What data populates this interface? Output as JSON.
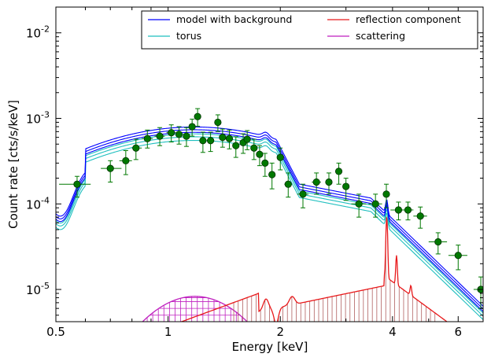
{
  "chart_data": {
    "type": "line",
    "title": "",
    "xlabel": "Energy [keV]",
    "ylabel": "Count rate [cts/s/keV]",
    "xscale": "log",
    "yscale": "log",
    "xlim": [
      0.5,
      7.0
    ],
    "ylim": [
      4.2e-06,
      0.02
    ],
    "grid": false,
    "legend_position": "top-right",
    "legend_columns": 2,
    "x_ticks": [
      {
        "value": 0.5,
        "label": "0.5"
      },
      {
        "value": 1,
        "label": "1"
      },
      {
        "value": 2,
        "label": "2"
      },
      {
        "value": 4,
        "label": "4"
      },
      {
        "value": 6,
        "label": "6"
      }
    ],
    "y_ticks": [
      {
        "value": 1e-05,
        "base": "10",
        "exp": "-5"
      },
      {
        "value": 0.0001,
        "base": "10",
        "exp": "-4"
      },
      {
        "value": 0.001,
        "base": "10",
        "exp": "-3"
      },
      {
        "value": 0.01,
        "base": "10",
        "exp": "-2"
      }
    ],
    "series": [
      {
        "name": "model with background",
        "color": "#0000ff",
        "kind": "model"
      },
      {
        "name": "torus",
        "color": "#1fbfbf",
        "kind": "torus"
      },
      {
        "name": "reflection component",
        "color": "#e8191b",
        "kind": "reflection"
      },
      {
        "name": "scattering",
        "color": "#bf1fbf",
        "kind": "scattering"
      }
    ],
    "data_points": {
      "color": "#007800",
      "points": [
        {
          "x": 0.57,
          "y": 0.00017,
          "xerr": [
            0.06,
            0.05
          ],
          "yerr": [
            5e-05,
            4e-05
          ]
        },
        {
          "x": 0.7,
          "y": 0.00026,
          "xerr": [
            0.04,
            0.05
          ],
          "yerr": [
            8e-05,
            6e-05
          ]
        },
        {
          "x": 0.77,
          "y": 0.00032,
          "xerr": [
            0.03,
            0.03
          ],
          "yerr": [
            0.0001,
            0.0001
          ]
        },
        {
          "x": 0.82,
          "y": 0.00045,
          "xerr": [
            0.02,
            0.03
          ],
          "yerr": [
            0.00012,
            0.00012
          ]
        },
        {
          "x": 0.88,
          "y": 0.00058,
          "xerr": [
            0.03,
            0.03
          ],
          "yerr": [
            0.00013,
            0.00015
          ]
        },
        {
          "x": 0.95,
          "y": 0.00062,
          "xerr": [
            0.03,
            0.03
          ],
          "yerr": [
            0.00014,
            0.00016
          ]
        },
        {
          "x": 1.02,
          "y": 0.00068,
          "xerr": [
            0.03,
            0.03
          ],
          "yerr": [
            0.00015,
            0.00016
          ]
        },
        {
          "x": 1.07,
          "y": 0.00065,
          "xerr": [
            0.02,
            0.02
          ],
          "yerr": [
            0.00015,
            0.00015
          ]
        },
        {
          "x": 1.12,
          "y": 0.00062,
          "xerr": [
            0.02,
            0.02
          ],
          "yerr": [
            0.00015,
            0.00016
          ]
        },
        {
          "x": 1.16,
          "y": 0.0008,
          "xerr": [
            0.02,
            0.02
          ],
          "yerr": [
            0.00018,
            0.00018
          ]
        },
        {
          "x": 1.2,
          "y": 0.00105,
          "xerr": [
            0.02,
            0.02
          ],
          "yerr": [
            0.00024,
            0.00025
          ]
        },
        {
          "x": 1.24,
          "y": 0.00055,
          "xerr": [
            0.02,
            0.02
          ],
          "yerr": [
            0.00015,
            0.00014
          ]
        },
        {
          "x": 1.3,
          "y": 0.00055,
          "xerr": [
            0.03,
            0.03
          ],
          "yerr": [
            0.00014,
            0.00014
          ]
        },
        {
          "x": 1.36,
          "y": 0.0009,
          "xerr": [
            0.02,
            0.02
          ],
          "yerr": [
            0.0002,
            0.0002
          ]
        },
        {
          "x": 1.4,
          "y": 0.0006,
          "xerr": [
            0.02,
            0.02
          ],
          "yerr": [
            0.00014,
            0.00015
          ]
        },
        {
          "x": 1.46,
          "y": 0.00058,
          "xerr": [
            0.03,
            0.03
          ],
          "yerr": [
            0.00014,
            0.00015
          ]
        },
        {
          "x": 1.52,
          "y": 0.00048,
          "xerr": [
            0.03,
            0.03
          ],
          "yerr": [
            0.00013,
            0.00013
          ]
        },
        {
          "x": 1.59,
          "y": 0.00052,
          "xerr": [
            0.03,
            0.03
          ],
          "yerr": [
            0.00013,
            0.00014
          ]
        },
        {
          "x": 1.63,
          "y": 0.00057,
          "xerr": [
            0.02,
            0.02
          ],
          "yerr": [
            0.00014,
            0.00015
          ]
        },
        {
          "x": 1.7,
          "y": 0.00045,
          "xerr": [
            0.03,
            0.03
          ],
          "yerr": [
            0.00012,
            0.00012
          ]
        },
        {
          "x": 1.76,
          "y": 0.00038,
          "xerr": [
            0.03,
            0.03
          ],
          "yerr": [
            0.0001,
            0.0001
          ]
        },
        {
          "x": 1.82,
          "y": 0.0003,
          "xerr": [
            0.03,
            0.03
          ],
          "yerr": [
            9e-05,
            9e-05
          ]
        },
        {
          "x": 1.9,
          "y": 0.00022,
          "xerr": [
            0.04,
            0.04
          ],
          "yerr": [
            7e-05,
            8e-05
          ]
        },
        {
          "x": 2.0,
          "y": 0.00035,
          "xerr": [
            0.04,
            0.04
          ],
          "yerr": [
            0.0001,
            0.0001
          ]
        },
        {
          "x": 2.1,
          "y": 0.00017,
          "xerr": [
            0.05,
            0.05
          ],
          "yerr": [
            5e-05,
            6e-05
          ]
        },
        {
          "x": 2.3,
          "y": 0.00013,
          "xerr": [
            0.08,
            0.08
          ],
          "yerr": [
            4e-05,
            4e-05
          ]
        },
        {
          "x": 2.5,
          "y": 0.00018,
          "xerr": [
            0.07,
            0.07
          ],
          "yerr": [
            5e-05,
            5e-05
          ]
        },
        {
          "x": 2.7,
          "y": 0.00018,
          "xerr": [
            0.06,
            0.06
          ],
          "yerr": [
            5e-05,
            5e-05
          ]
        },
        {
          "x": 2.87,
          "y": 0.00024,
          "xerr": [
            0.06,
            0.06
          ],
          "yerr": [
            7e-05,
            6e-05
          ]
        },
        {
          "x": 3.0,
          "y": 0.00016,
          "xerr": [
            0.06,
            0.06
          ],
          "yerr": [
            5e-05,
            4e-05
          ]
        },
        {
          "x": 3.25,
          "y": 0.0001,
          "xerr": [
            0.15,
            0.15
          ],
          "yerr": [
            3e-05,
            3e-05
          ]
        },
        {
          "x": 3.6,
          "y": 0.0001,
          "xerr": [
            0.15,
            0.15
          ],
          "yerr": [
            3e-05,
            3e-05
          ]
        },
        {
          "x": 3.85,
          "y": 0.00013,
          "xerr": [
            0.06,
            0.06
          ],
          "yerr": [
            4e-05,
            4e-05
          ]
        },
        {
          "x": 4.15,
          "y": 8.5e-05,
          "xerr": [
            0.2,
            0.2
          ],
          "yerr": [
            2e-05,
            2e-05
          ]
        },
        {
          "x": 4.4,
          "y": 8.5e-05,
          "xerr": [
            0.15,
            0.15
          ],
          "yerr": [
            2e-05,
            2e-05
          ]
        },
        {
          "x": 4.75,
          "y": 7.2e-05,
          "xerr": [
            0.2,
            0.2
          ],
          "yerr": [
            2e-05,
            2e-05
          ]
        },
        {
          "x": 5.3,
          "y": 3.6e-05,
          "xerr": [
            0.3,
            0.3
          ],
          "yerr": [
            1e-05,
            1e-05
          ]
        },
        {
          "x": 6.0,
          "y": 2.5e-05,
          "xerr": [
            0.35,
            0.35
          ],
          "yerr": [
            8e-06,
            8e-06
          ]
        },
        {
          "x": 6.9,
          "y": 1e-05,
          "xerr": [
            0.3,
            0.3
          ],
          "yerr": [
            4e-06,
            4e-06
          ]
        }
      ]
    }
  }
}
